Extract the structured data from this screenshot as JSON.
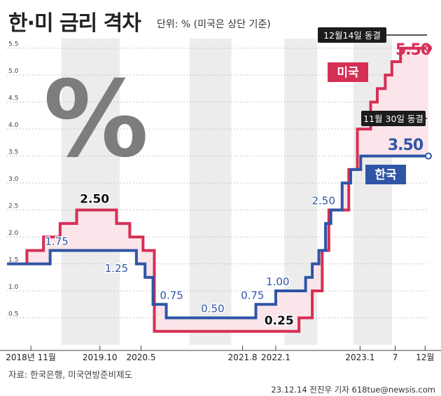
{
  "header": {
    "title": "한·미 금리 격차",
    "unit": "단위: % (미국은 상단 기준)"
  },
  "footer": {
    "source": "자료: 한국은행, 미국연방준비제도",
    "credit": "23.12.14 전진우 기자 618tue@newsis.com"
  },
  "chart_data": {
    "type": "line",
    "step": true,
    "title": "한·미 금리 격차",
    "unit": "%",
    "ylim": [
      0,
      5.6
    ],
    "yticks": [
      0.5,
      1.0,
      1.5,
      2.0,
      2.5,
      3.0,
      3.5,
      4.0,
      4.5,
      5.0,
      5.5
    ],
    "ytick_labels": [
      "0.5",
      "1.0",
      "1.5",
      "2.0",
      "2.5",
      "3.0",
      "3.5",
      "4.0",
      "4.5",
      "5.0",
      "5.5"
    ],
    "xticks": [
      {
        "t": 3.6,
        "label": "2018년 11월"
      },
      {
        "t": 14.0,
        "label": "2019.10"
      },
      {
        "t": 20.2,
        "label": "2020.5"
      },
      {
        "t": 35.5,
        "label": "2021.8"
      },
      {
        "t": 40.5,
        "label": "2022.1"
      },
      {
        "t": 53.2,
        "label": "2023.1"
      },
      {
        "t": 58.5,
        "label": "7"
      },
      {
        "t": 63.0,
        "label": "12월"
      }
    ],
    "shaded_bands": [
      [
        8.2,
        17.0
      ],
      [
        27.5,
        33.8
      ],
      [
        41.8,
        46.8
      ],
      [
        52.2,
        58.0
      ]
    ],
    "series": [
      {
        "name": "미국",
        "color": "#d62f55",
        "points": [
          [
            0,
            1.5
          ],
          [
            3,
            1.5
          ],
          [
            3,
            1.75
          ],
          [
            5.5,
            1.75
          ],
          [
            5.5,
            2.0
          ],
          [
            8,
            2.0
          ],
          [
            8,
            2.25
          ],
          [
            10.5,
            2.25
          ],
          [
            10.5,
            2.5
          ],
          [
            16.5,
            2.5
          ],
          [
            16.5,
            2.25
          ],
          [
            18.5,
            2.25
          ],
          [
            18.5,
            2.0
          ],
          [
            20.5,
            2.0
          ],
          [
            20.5,
            1.75
          ],
          [
            22.2,
            1.75
          ],
          [
            22.2,
            0.25
          ],
          [
            44,
            0.25
          ],
          [
            44,
            0.5
          ],
          [
            46,
            0.5
          ],
          [
            46,
            1.0
          ],
          [
            47.5,
            1.0
          ],
          [
            47.5,
            1.75
          ],
          [
            48.5,
            1.75
          ],
          [
            48.5,
            2.5
          ],
          [
            51.5,
            2.5
          ],
          [
            51.5,
            3.25
          ],
          [
            52.8,
            3.25
          ],
          [
            52.8,
            4.0
          ],
          [
            54.8,
            4.0
          ],
          [
            54.8,
            4.5
          ],
          [
            55.8,
            4.5
          ],
          [
            55.8,
            4.75
          ],
          [
            57,
            4.75
          ],
          [
            57,
            5.0
          ],
          [
            58,
            5.0
          ],
          [
            58,
            5.25
          ],
          [
            59.3,
            5.25
          ],
          [
            59.3,
            5.5
          ],
          [
            63.5,
            5.5
          ]
        ],
        "end_value": "5.50",
        "end_note": "12월14일 동결",
        "labels": [
          {
            "t": 13.2,
            "v": 2.5,
            "text": "2.50"
          },
          {
            "t": 41.0,
            "v": 0.25,
            "text": "0.25"
          }
        ]
      },
      {
        "name": "한국",
        "color": "#2f55a6",
        "points": [
          [
            0,
            1.5
          ],
          [
            6.5,
            1.5
          ],
          [
            6.5,
            1.75
          ],
          [
            19.5,
            1.75
          ],
          [
            19.5,
            1.5
          ],
          [
            20.8,
            1.5
          ],
          [
            20.8,
            1.25
          ],
          [
            22,
            1.25
          ],
          [
            22,
            0.75
          ],
          [
            24,
            0.75
          ],
          [
            24,
            0.5
          ],
          [
            37.5,
            0.5
          ],
          [
            37.5,
            0.75
          ],
          [
            40.5,
            0.75
          ],
          [
            40.5,
            1.0
          ],
          [
            45,
            1.0
          ],
          [
            45,
            1.25
          ],
          [
            46,
            1.25
          ],
          [
            46,
            1.5
          ],
          [
            47,
            1.5
          ],
          [
            47,
            1.75
          ],
          [
            48,
            1.75
          ],
          [
            48,
            2.25
          ],
          [
            48.8,
            2.25
          ],
          [
            48.8,
            2.5
          ],
          [
            50.5,
            2.5
          ],
          [
            50.5,
            3.0
          ],
          [
            51.8,
            3.0
          ],
          [
            51.8,
            3.25
          ],
          [
            53.3,
            3.25
          ],
          [
            53.3,
            3.5
          ],
          [
            63.5,
            3.5
          ]
        ],
        "end_value": "3.50",
        "end_note": "11월 30일 동결",
        "labels": [
          {
            "t": 7.5,
            "v": 1.75,
            "text": "1.75"
          },
          {
            "t": 16.5,
            "v": 1.25,
            "text": "1.25"
          },
          {
            "t": 24.8,
            "v": 0.75,
            "text": "0.75"
          },
          {
            "t": 31.0,
            "v": 0.5,
            "text": "0.50"
          },
          {
            "t": 37.0,
            "v": 0.75,
            "text": "0.75"
          },
          {
            "t": 40.8,
            "v": 1.0,
            "text": "1.00"
          },
          {
            "t": 47.7,
            "v": 2.5,
            "text": "2.50"
          }
        ]
      }
    ],
    "watermark": "%"
  }
}
